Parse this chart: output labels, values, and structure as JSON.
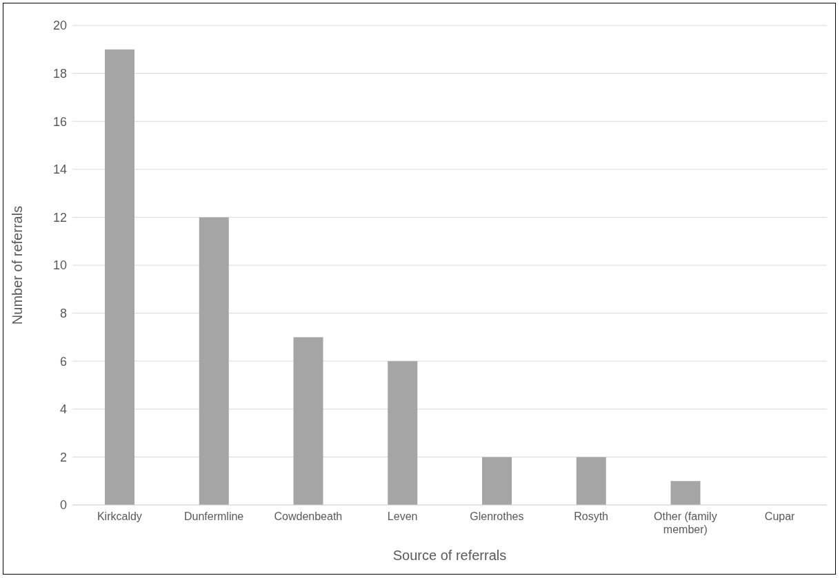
{
  "chart_data": {
    "type": "bar",
    "xlabel": "Source of referrals",
    "ylabel": "Number of referrals",
    "categories": [
      "Kirkcaldy",
      "Dunfermline",
      "Cowdenbeath",
      "Leven",
      "Glenrothes",
      "Rosyth",
      "Other (family member)",
      "Cupar"
    ],
    "values": [
      19,
      12,
      7,
      6,
      2,
      2,
      1,
      0
    ],
    "color": "#a5a5a5",
    "ylim": [
      0,
      20
    ],
    "yticks": [
      0,
      2,
      4,
      6,
      8,
      10,
      12,
      14,
      16,
      18,
      20
    ],
    "grid": "y",
    "legend": false
  }
}
